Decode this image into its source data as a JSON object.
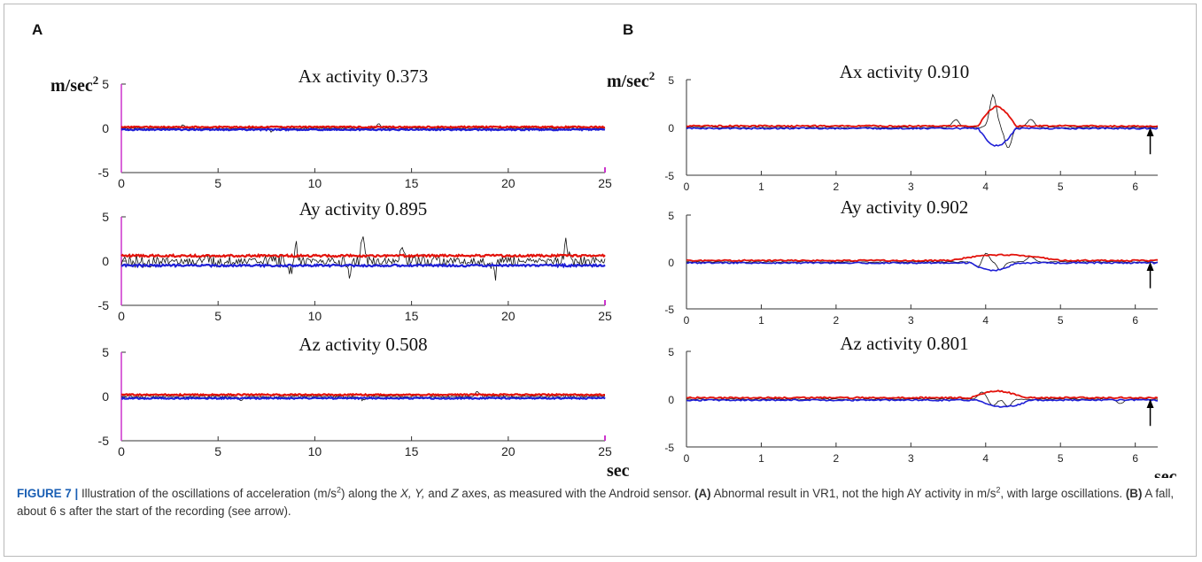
{
  "panels": [
    {
      "letter": "A"
    },
    {
      "letter": "B"
    }
  ],
  "unit_label": "m/sec",
  "unit_exponent": "2",
  "time_label": "sec",
  "colors": {
    "upper_envelope": "#e3120b",
    "lower_envelope": "#1f1fd6",
    "signal": "#111111",
    "marker": "#cc33cc"
  },
  "caption": {
    "label": "FIGURE 7 |",
    "text1": " Illustration of the oscillations of acceleration (m/s",
    "sup": "2",
    "text2": ") along the ",
    "axes_italic": "X, Y,",
    "text3": " and ",
    "z_italic": "Z",
    "text4": " axes, as measured with the Android sensor. ",
    "a_ref": "(A)",
    "text5": " Abnormal result in VR1, not the high AY activity in m/s",
    "sup2": "2",
    "text6": ", with large oscillations. ",
    "b_ref": "(B)",
    "text7": " A fall, about 6 s after the start of the recording (see arrow)."
  },
  "chart_data": [
    {
      "type": "line",
      "panel": "A",
      "title": "Ax activity 0.373",
      "xlim": [
        0,
        25
      ],
      "ylim": [
        -5,
        5
      ],
      "xticks": [
        0,
        5,
        10,
        15,
        20,
        25
      ],
      "yticks": [
        -5,
        0,
        5
      ],
      "ylabel": "m/sec2",
      "xlabel": "",
      "series": [
        {
          "key": "signal",
          "amplitude": 0.12,
          "spikes": [
            [
              3.2,
              0.4
            ],
            [
              13.3,
              0.5
            ],
            [
              7.8,
              -0.4
            ]
          ]
        },
        {
          "key": "upper",
          "offset": 0.15
        },
        {
          "key": "lower",
          "offset": -0.15
        }
      ]
    },
    {
      "type": "line",
      "panel": "A",
      "title": "Ay activity 0.895",
      "xlim": [
        0,
        25
      ],
      "ylim": [
        -5,
        5
      ],
      "xticks": [
        0,
        5,
        10,
        15,
        20,
        25
      ],
      "yticks": [
        -5,
        0,
        5
      ],
      "ylabel": "",
      "xlabel": "",
      "series": [
        {
          "key": "signal",
          "amplitude": 0.8,
          "spikes": [
            [
              12.5,
              2.7
            ],
            [
              8.8,
              -1.4
            ],
            [
              11.8,
              -1.4
            ],
            [
              19.3,
              -1.7
            ],
            [
              9.0,
              1.9
            ],
            [
              14.5,
              1.7
            ],
            [
              23.0,
              2.0
            ]
          ]
        },
        {
          "key": "upper",
          "offset": 0.6
        },
        {
          "key": "lower",
          "offset": -0.5
        }
      ]
    },
    {
      "type": "line",
      "panel": "A",
      "title": "Az activity 0.508",
      "xlim": [
        0,
        25
      ],
      "ylim": [
        -5,
        5
      ],
      "xticks": [
        0,
        5,
        10,
        15,
        20,
        25
      ],
      "yticks": [
        -5,
        0,
        5
      ],
      "ylabel": "",
      "xlabel": "sec",
      "series": [
        {
          "key": "signal",
          "amplitude": 0.15,
          "spikes": [
            [
              18.4,
              0.6
            ],
            [
              6.2,
              -0.5
            ],
            [
              12.5,
              -0.4
            ]
          ]
        },
        {
          "key": "upper",
          "offset": 0.2
        },
        {
          "key": "lower",
          "offset": -0.2
        }
      ]
    },
    {
      "type": "line",
      "panel": "B",
      "title": "Ax activity 0.910",
      "xlim": [
        0,
        6.3
      ],
      "ylim": [
        -5,
        5
      ],
      "xticks": [
        0,
        1,
        2,
        3,
        4,
        5,
        6
      ],
      "yticks": [
        -5,
        0,
        5
      ],
      "ylabel": "m/sec2",
      "xlabel": "",
      "arrow_x": 6.2,
      "series": [
        {
          "key": "signal",
          "amplitude": 0.1,
          "spikes": [
            [
              4.1,
              3.4
            ],
            [
              4.3,
              -2.2
            ],
            [
              3.6,
              0.8
            ],
            [
              4.6,
              0.9
            ]
          ]
        },
        {
          "key": "upper",
          "offset": 0.15,
          "bump": [
            [
              3.9,
              4.4,
              2.0
            ]
          ]
        },
        {
          "key": "lower",
          "offset": -0.1,
          "bump": [
            [
              3.9,
              4.4,
              -1.8
            ]
          ]
        }
      ]
    },
    {
      "type": "line",
      "panel": "B",
      "title": "Ay activity 0.902",
      "xlim": [
        0,
        6.3
      ],
      "ylim": [
        -5,
        5
      ],
      "xticks": [
        0,
        1,
        2,
        3,
        4,
        5,
        6
      ],
      "yticks": [
        -5,
        0,
        5
      ],
      "ylabel": "",
      "xlabel": "",
      "arrow_x": 6.2,
      "series": [
        {
          "key": "signal",
          "amplitude": 0.08,
          "spikes": [
            [
              4.0,
              1.0
            ],
            [
              4.2,
              -0.9
            ],
            [
              3.9,
              -0.6
            ],
            [
              4.6,
              0.6
            ]
          ]
        },
        {
          "key": "upper",
          "offset": 0.15,
          "bump": [
            [
              3.5,
              5.0,
              0.6
            ]
          ]
        },
        {
          "key": "lower",
          "offset": -0.1,
          "bump": [
            [
              3.8,
              4.4,
              -0.8
            ]
          ]
        }
      ]
    },
    {
      "type": "line",
      "panel": "B",
      "title": "Az activity 0.801",
      "xlim": [
        0,
        6.3
      ],
      "ylim": [
        -5,
        5
      ],
      "xticks": [
        0,
        1,
        2,
        3,
        4,
        5,
        6
      ],
      "yticks": [
        -5,
        0,
        5
      ],
      "ylabel": "",
      "xlabel": "sec",
      "arrow_x": 6.2,
      "series": [
        {
          "key": "signal",
          "amplitude": 0.08,
          "spikes": [
            [
              3.95,
              0.8
            ],
            [
              4.1,
              -0.7
            ],
            [
              4.3,
              -0.8
            ],
            [
              5.8,
              -0.5
            ]
          ]
        },
        {
          "key": "upper",
          "offset": 0.15,
          "bump": [
            [
              3.8,
              4.5,
              0.7
            ]
          ]
        },
        {
          "key": "lower",
          "offset": -0.1,
          "bump": [
            [
              3.9,
              4.6,
              -0.7
            ]
          ]
        }
      ]
    }
  ]
}
